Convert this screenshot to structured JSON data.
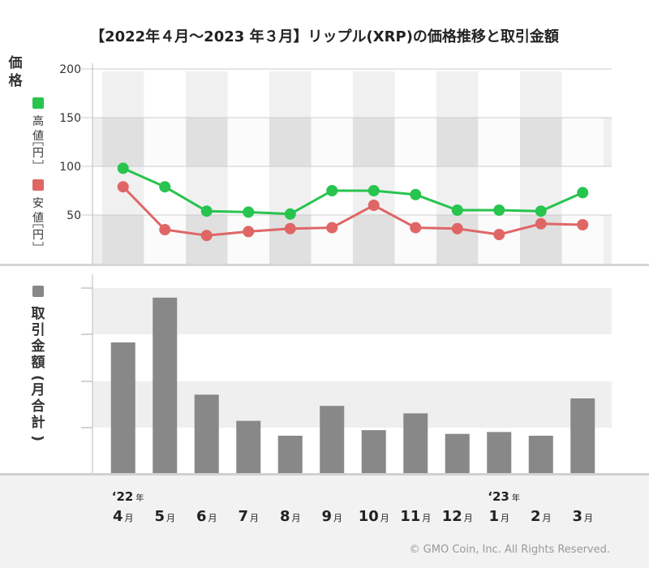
{
  "chart_data": [
    {
      "type": "line",
      "title": "【2022年４月～2023 年３月】リップル(XRP)の価格推移と取引金額",
      "ylabel": "価格",
      "yticks": [
        50,
        100,
        150,
        200
      ],
      "ylim": [
        0,
        200
      ],
      "grid": true,
      "legend_placement": "left",
      "categories": [
        "4",
        "5",
        "6",
        "7",
        "8",
        "9",
        "10",
        "11",
        "12",
        "1",
        "2",
        "3"
      ],
      "series": [
        {
          "name": "高値",
          "unit": "円",
          "color": "#27c44e",
          "values": [
            98,
            79,
            54,
            53,
            51,
            75,
            75,
            71,
            55,
            55,
            54,
            73
          ]
        },
        {
          "name": "安値",
          "unit": "円",
          "color": "#e06666",
          "values": [
            79,
            35,
            29,
            33,
            36,
            37,
            60,
            37,
            36,
            30,
            41,
            40
          ]
        }
      ]
    },
    {
      "type": "bar",
      "ylabel": "取引金額(月合計)",
      "ylim": [
        0,
        100
      ],
      "categories": [
        "4",
        "5",
        "6",
        "7",
        "8",
        "9",
        "10",
        "11",
        "12",
        "1",
        "2",
        "3"
      ],
      "series": [
        {
          "name": "取引金額(月合計)",
          "color": "#888888",
          "values": [
            70,
            94,
            42,
            28,
            20,
            36,
            23,
            32,
            21,
            22,
            20,
            40
          ]
        }
      ]
    }
  ],
  "xaxis": {
    "year_markers": [
      {
        "index": 0,
        "year": "‘22",
        "suffix": "年"
      },
      {
        "index": 9,
        "year": "‘23",
        "suffix": "年"
      }
    ],
    "month_suffix": "月"
  },
  "labels": {
    "price_chars": [
      "価",
      "格"
    ],
    "high_chars": [
      "高",
      "値"
    ],
    "low_chars": [
      "安",
      "値"
    ],
    "yen": "円",
    "volume_chars": [
      "取",
      "引",
      "金",
      "額",
      "(",
      "月",
      "合",
      "計",
      ")"
    ]
  },
  "colors": {
    "high": "#27c44e",
    "low": "#e06666",
    "bar": "#888888",
    "band_dark": "#efefef",
    "band_light": "#ffffff",
    "column_light": "#ffffff",
    "column_dark": "#e2e2e2",
    "bottom_bg": "#f2f2f2"
  },
  "copyright": "© GMO Coin, Inc. All Rights Reserved."
}
